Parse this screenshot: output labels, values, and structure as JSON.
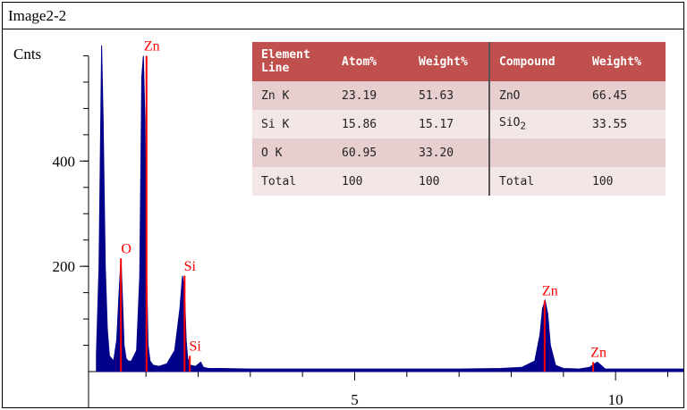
{
  "window_title": "Image2-2",
  "table": {
    "headers": [
      "Element\nLine",
      "Atom%",
      "Weight%",
      "Compound",
      "Weight%"
    ],
    "rows": [
      [
        "Zn K",
        "23.19",
        "51.63",
        "ZnO",
        "66.45"
      ],
      [
        "Si K",
        "15.86",
        "15.17",
        "SiO2",
        "33.55"
      ],
      [
        "O K",
        "60.95",
        "33.20",
        "",
        ""
      ],
      [
        "Total",
        "100",
        "100",
        "Total",
        "100"
      ]
    ]
  },
  "chart_data": {
    "type": "line",
    "ylabel": "Cnts",
    "xlabel": "",
    "xlim": [
      -0.1,
      11.3
    ],
    "ylim": [
      0,
      650
    ],
    "x_ticks": [
      5,
      10
    ],
    "y_ticks": [
      200,
      400
    ],
    "series": [
      {
        "color": "#00008b",
        "x": [
          0.05,
          0.1,
          0.15,
          0.18,
          0.22,
          0.26,
          0.3,
          0.38,
          0.44,
          0.48,
          0.52,
          0.55,
          0.58,
          0.62,
          0.66,
          0.72,
          0.82,
          0.88,
          0.92,
          0.95,
          0.98,
          1.01,
          1.04,
          1.08,
          1.14,
          1.25,
          1.4,
          1.55,
          1.65,
          1.7,
          1.74,
          1.77,
          1.8,
          1.85,
          1.95,
          2.05,
          2.1,
          2.2,
          2.4,
          3.0,
          4.0,
          5.0,
          6.0,
          7.0,
          7.8,
          8.2,
          8.45,
          8.55,
          8.6,
          8.65,
          8.7,
          8.75,
          8.85,
          9.0,
          9.3,
          9.5,
          9.6,
          9.65,
          9.72,
          9.8,
          10.0,
          10.5,
          11.0,
          11.3
        ],
        "y": [
          35,
          200,
          620,
          480,
          200,
          80,
          30,
          20,
          60,
          140,
          215,
          140,
          50,
          25,
          20,
          20,
          40,
          180,
          560,
          600,
          480,
          200,
          50,
          20,
          12,
          10,
          15,
          40,
          120,
          182,
          150,
          60,
          25,
          12,
          10,
          18,
          8,
          6,
          6,
          5,
          5,
          5,
          5,
          5,
          6,
          8,
          20,
          70,
          120,
          135,
          110,
          50,
          12,
          6,
          5,
          8,
          15,
          18,
          12,
          5,
          5,
          5,
          5,
          5
        ]
      }
    ],
    "peaks": [
      {
        "label": "Zn",
        "x": 1.01,
        "y": 600
      },
      {
        "label": "O",
        "x": 0.52,
        "y": 215
      },
      {
        "label": "Si",
        "x": 1.74,
        "y": 182
      },
      {
        "label": "Si",
        "x": 1.84,
        "y": 30
      },
      {
        "label": "Zn",
        "x": 8.64,
        "y": 135
      },
      {
        "label": "Zn",
        "x": 9.57,
        "y": 18
      }
    ],
    "peak_label_color": "#ff0000"
  }
}
